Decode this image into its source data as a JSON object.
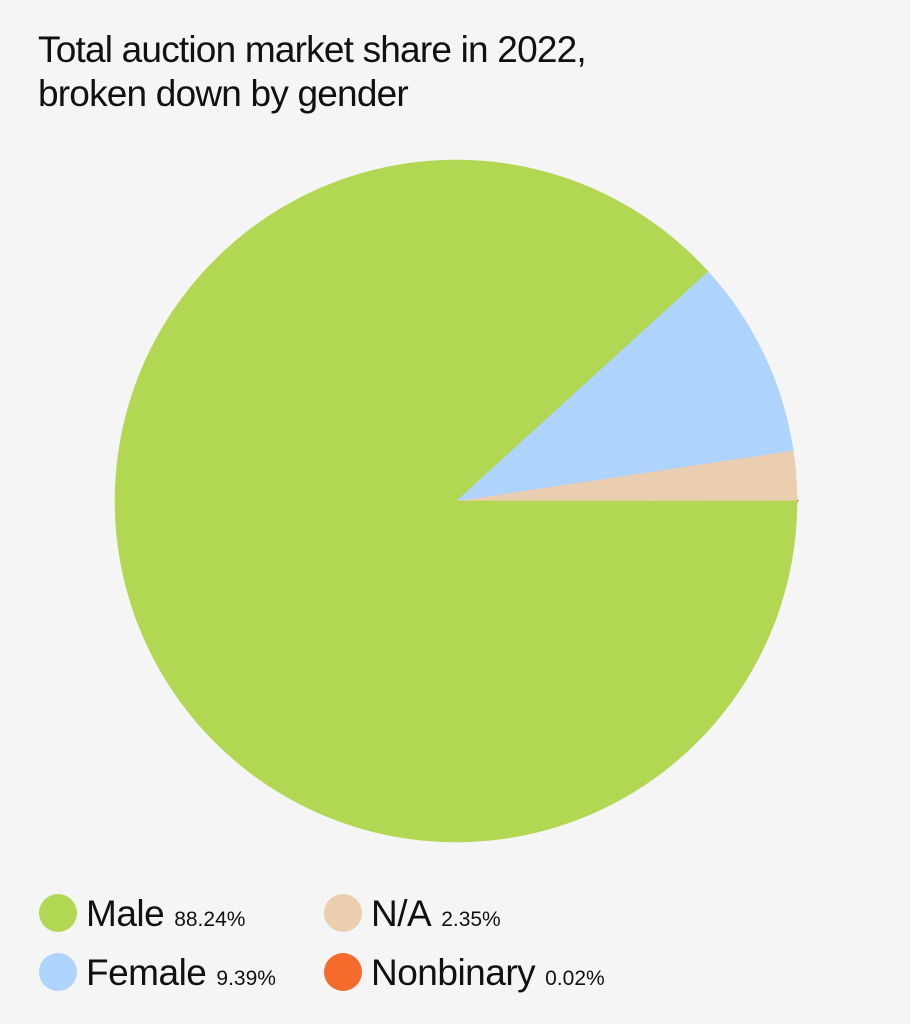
{
  "chart_data": {
    "type": "pie",
    "title": "Total auction market share in 2022, broken down by gender",
    "categories": [
      "Male",
      "Female",
      "N/A",
      "Nonbinary"
    ],
    "values": [
      88.24,
      9.39,
      2.35,
      0.02
    ],
    "value_labels": [
      "88.24%",
      "9.39%",
      "2.35%",
      "0.02%"
    ],
    "colors": [
      "#b2d752",
      "#aed3fc",
      "#ebcdb0",
      "#f56b2c"
    ]
  }
}
